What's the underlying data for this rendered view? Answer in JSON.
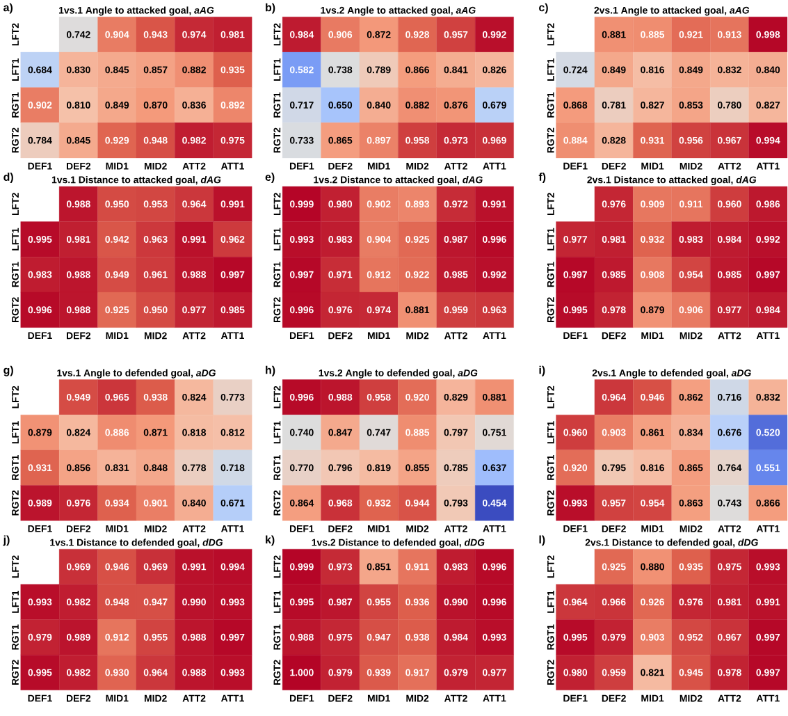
{
  "chart_data": [
    {
      "type": "heatmap",
      "title": "1vs.1 Angle to attacked goal, *aAG*",
      "annotations": [
        "a)"
      ],
      "data_labels": true,
      "categories": [
        "DEF1",
        "DEF2",
        "MID1",
        "MID2",
        "ATT2",
        "ATT1"
      ],
      "y_categories": [
        "LFT2",
        "LFT1",
        "RGT1",
        "RGT2"
      ],
      "cells": [
        [
          null,
          0.742,
          0.904,
          0.943,
          0.974,
          0.981
        ],
        [
          0.684,
          0.83,
          0.845,
          0.857,
          0.882,
          0.935
        ],
        [
          0.902,
          0.81,
          0.849,
          0.87,
          0.836,
          0.892
        ],
        [
          0.784,
          0.845,
          0.929,
          0.948,
          0.982,
          0.975
        ]
      ],
      "cell_labels": [
        [
          null,
          "0.742",
          "0.904",
          "0.943",
          "0.974",
          "0.981"
        ],
        [
          "0.684",
          "0.830",
          "0.845",
          "0.857",
          "0.882",
          "0.935"
        ],
        [
          "0.902",
          "0.810",
          "0.849",
          "0.870",
          "0.836",
          "0.892"
        ],
        [
          "0.784",
          "0.845",
          "0.929",
          "0.948",
          "0.982",
          "0.975"
        ]
      ]
    },
    {
      "type": "heatmap",
      "title": "1vs.2 Angle to attacked goal, *aAG*",
      "annotations": [
        "b)"
      ],
      "data_labels": true,
      "categories": [
        "DEF1",
        "DEF2",
        "MID1",
        "MID2",
        "ATT2",
        "ATT1"
      ],
      "y_categories": [
        "LFT2",
        "LFT1",
        "RGT1",
        "RGT2"
      ],
      "cells": [
        [
          0.984,
          0.906,
          0.872,
          0.928,
          0.957,
          0.992
        ],
        [
          0.582,
          0.738,
          0.789,
          0.866,
          0.841,
          0.826
        ],
        [
          0.717,
          0.65,
          0.84,
          0.882,
          0.876,
          0.679
        ],
        [
          0.733,
          0.865,
          0.897,
          0.958,
          0.973,
          0.969
        ]
      ],
      "cell_labels": [
        [
          "0.984",
          "0.906",
          "0.872",
          "0.928",
          "0.957",
          "0.992"
        ],
        [
          "0.582",
          "0.738",
          "0.789",
          "0.866",
          "0.841",
          "0.826"
        ],
        [
          "0.717",
          "0.650",
          "0.840",
          "0.882",
          "0.876",
          "0.679"
        ],
        [
          "0.733",
          "0.865",
          "0.897",
          "0.958",
          "0.973",
          "0.969"
        ]
      ]
    },
    {
      "type": "heatmap",
      "title": "2vs.1 Angle to attacked goal, *aAG*",
      "annotations": [
        "c)"
      ],
      "data_labels": true,
      "categories": [
        "DEF1",
        "DEF2",
        "MID1",
        "MID2",
        "ATT2",
        "ATT1"
      ],
      "y_categories": [
        "LFT2",
        "LFT1",
        "RGT1",
        "RGT2"
      ],
      "cells": [
        [
          null,
          0.881,
          0.885,
          0.921,
          0.913,
          0.998
        ],
        [
          0.724,
          0.849,
          0.816,
          0.849,
          0.832,
          0.84
        ],
        [
          0.868,
          0.781,
          0.827,
          0.853,
          0.78,
          0.827
        ],
        [
          0.884,
          0.828,
          0.931,
          0.956,
          0.967,
          0.994
        ]
      ],
      "cell_labels": [
        [
          null,
          "0.881",
          "0.885",
          "0.921",
          "0.913",
          "0.998"
        ],
        [
          "0.724",
          "0.849",
          "0.816",
          "0.849",
          "0.832",
          "0.840"
        ],
        [
          "0.868",
          "0.781",
          "0.827",
          "0.853",
          "0.780",
          "0.827"
        ],
        [
          "0.884",
          "0.828",
          "0.931",
          "0.956",
          "0.967",
          "0.994"
        ]
      ]
    },
    {
      "type": "heatmap",
      "title": "1vs.1 Distance to attacked goal, *dAG*",
      "annotations": [
        "d)"
      ],
      "data_labels": true,
      "categories": [
        "DEF1",
        "DEF2",
        "MID1",
        "MID2",
        "ATT2",
        "ATT1"
      ],
      "y_categories": [
        "LFT2",
        "LFT1",
        "RGT1",
        "RGT2"
      ],
      "cells": [
        [
          null,
          0.988,
          0.95,
          0.953,
          0.964,
          0.991
        ],
        [
          0.995,
          0.981,
          0.942,
          0.963,
          0.991,
          0.962
        ],
        [
          0.983,
          0.988,
          0.949,
          0.961,
          0.988,
          0.997
        ],
        [
          0.996,
          0.988,
          0.925,
          0.95,
          0.977,
          0.985
        ]
      ],
      "cell_labels": [
        [
          null,
          "0.988",
          "0.950",
          "0.953",
          "0.964",
          "0.991"
        ],
        [
          "0.995",
          "0.981",
          "0.942",
          "0.963",
          "0.991",
          "0.962"
        ],
        [
          "0.983",
          "0.988",
          "0.949",
          "0.961",
          "0.988",
          "0.997"
        ],
        [
          "0.996",
          "0.988",
          "0.925",
          "0.950",
          "0.977",
          "0.985"
        ]
      ]
    },
    {
      "type": "heatmap",
      "title": "1vs.2 Distance to attacked goal, *dAG*",
      "annotations": [
        "e)"
      ],
      "data_labels": true,
      "categories": [
        "DEF1",
        "DEF2",
        "MID1",
        "MID2",
        "ATT2",
        "ATT1"
      ],
      "y_categories": [
        "LFT2",
        "LFT1",
        "RGT1",
        "RGT2"
      ],
      "cells": [
        [
          0.999,
          0.98,
          0.902,
          0.893,
          0.972,
          0.991
        ],
        [
          0.993,
          0.983,
          0.904,
          0.925,
          0.987,
          0.996
        ],
        [
          0.997,
          0.971,
          0.912,
          0.922,
          0.985,
          0.992
        ],
        [
          0.996,
          0.976,
          0.974,
          0.881,
          0.959,
          0.963
        ]
      ],
      "cell_labels": [
        [
          "0.999",
          "0.980",
          "0.902",
          "0.893",
          "0.972",
          "0.991"
        ],
        [
          "0.993",
          "0.983",
          "0.904",
          "0.925",
          "0.987",
          "0.996"
        ],
        [
          "0.997",
          "0.971",
          "0.912",
          "0.922",
          "0.985",
          "0.992"
        ],
        [
          "0.996",
          "0.976",
          "0.974",
          "0.881",
          "0.959",
          "0.963"
        ]
      ]
    },
    {
      "type": "heatmap",
      "title": "2vs.1 Distance to attacked goal, *dAG*",
      "annotations": [
        "f)"
      ],
      "data_labels": true,
      "categories": [
        "DEF1",
        "DEF2",
        "MID1",
        "MID2",
        "ATT2",
        "ATT1"
      ],
      "y_categories": [
        "LFT2",
        "LFT1",
        "RGT1",
        "RGT2"
      ],
      "cells": [
        [
          null,
          0.976,
          0.909,
          0.911,
          0.96,
          0.986
        ],
        [
          0.977,
          0.981,
          0.932,
          0.983,
          0.984,
          0.992
        ],
        [
          0.997,
          0.985,
          0.908,
          0.954,
          0.985,
          0.997
        ],
        [
          0.995,
          0.978,
          0.879,
          0.906,
          0.977,
          0.984
        ]
      ],
      "cell_labels": [
        [
          null,
          "0.976",
          "0.909",
          "0.911",
          "0.960",
          "0.986"
        ],
        [
          "0.977",
          "0.981",
          "0.932",
          "0.983",
          "0.984",
          "0.992"
        ],
        [
          "0.997",
          "0.985",
          "0.908",
          "0.954",
          "0.985",
          "0.997"
        ],
        [
          "0.995",
          "0.978",
          "0.879",
          "0.906",
          "0.977",
          "0.984"
        ]
      ]
    },
    {
      "type": "heatmap",
      "title": "1vs.1 Angle to defended goal, *aDG*",
      "annotations": [
        "g)"
      ],
      "data_labels": true,
      "categories": [
        "DEF1",
        "DEF2",
        "MID1",
        "MID2",
        "ATT2",
        "ATT1"
      ],
      "y_categories": [
        "LFT2",
        "LFT1",
        "RGT1",
        "RGT2"
      ],
      "cells": [
        [
          null,
          0.949,
          0.965,
          0.938,
          0.824,
          0.773
        ],
        [
          0.879,
          0.824,
          0.886,
          0.871,
          0.818,
          0.812
        ],
        [
          0.931,
          0.856,
          0.831,
          0.848,
          0.778,
          0.718
        ],
        [
          0.989,
          0.976,
          0.934,
          0.901,
          0.84,
          0.671
        ]
      ],
      "cell_labels": [
        [
          null,
          "0.949",
          "0.965",
          "0.938",
          "0.824",
          "0.773"
        ],
        [
          "0.879",
          "0.824",
          "0.886",
          "0.871",
          "0.818",
          "0.812"
        ],
        [
          "0.931",
          "0.856",
          "0.831",
          "0.848",
          "0.778",
          "0.718"
        ],
        [
          "0.989",
          "0.976",
          "0.934",
          "0.901",
          "0.840",
          "0.671"
        ]
      ]
    },
    {
      "type": "heatmap",
      "title": "1vs.2 Angle to defended goal, *aDG*",
      "annotations": [
        "h)"
      ],
      "data_labels": true,
      "categories": [
        "DEF1",
        "DEF2",
        "MID1",
        "MID2",
        "ATT2",
        "ATT1"
      ],
      "y_categories": [
        "LFT2",
        "LFT1",
        "RGT1",
        "RGT2"
      ],
      "cells": [
        [
          0.996,
          0.988,
          0.958,
          0.92,
          0.829,
          0.881
        ],
        [
          0.74,
          0.847,
          0.747,
          0.885,
          0.797,
          0.751
        ],
        [
          0.77,
          0.796,
          0.819,
          0.855,
          0.785,
          0.637
        ],
        [
          0.864,
          0.968,
          0.932,
          0.944,
          0.793,
          0.454
        ]
      ],
      "cell_labels": [
        [
          "0.996",
          "0.988",
          "0.958",
          "0.920",
          "0.829",
          "0.881"
        ],
        [
          "0.740",
          "0.847",
          "0.747",
          "0.885",
          "0.797",
          "0.751"
        ],
        [
          "0.770",
          "0.796",
          "0.819",
          "0.855",
          "0.785",
          "0.637"
        ],
        [
          "0.864",
          "0.968",
          "0.932",
          "0.944",
          "0.793",
          "0.454"
        ]
      ]
    },
    {
      "type": "heatmap",
      "title": "2vs.1 Angle to defended goal, *aDG*",
      "annotations": [
        "i)"
      ],
      "data_labels": true,
      "categories": [
        "DEF1",
        "DEF2",
        "MID1",
        "MID2",
        "ATT2",
        "ATT1"
      ],
      "y_categories": [
        "LFT2",
        "LFT1",
        "RGT1",
        "RGT2"
      ],
      "cells": [
        [
          null,
          0.964,
          0.946,
          0.862,
          0.716,
          0.832
        ],
        [
          0.96,
          0.903,
          0.861,
          0.834,
          0.676,
          0.52
        ],
        [
          0.92,
          0.795,
          0.816,
          0.865,
          0.764,
          0.551
        ],
        [
          0.993,
          0.957,
          0.954,
          0.863,
          0.743,
          0.866
        ]
      ],
      "cell_labels": [
        [
          null,
          "0.964",
          "0.946",
          "0.862",
          "0.716",
          "0.832"
        ],
        [
          "0.960",
          "0.903",
          "0.861",
          "0.834",
          "0.676",
          "0.520"
        ],
        [
          "0.920",
          "0.795",
          "0.816",
          "0.865",
          "0.764",
          "0.551"
        ],
        [
          "0.993",
          "0.957",
          "0.954",
          "0.863",
          "0.743",
          "0.866"
        ]
      ]
    },
    {
      "type": "heatmap",
      "title": "1vs.1 Distance to defended goal, *dDG*",
      "annotations": [
        "j)"
      ],
      "data_labels": true,
      "categories": [
        "DEF1",
        "DEF2",
        "MID1",
        "MID2",
        "ATT2",
        "ATT1"
      ],
      "y_categories": [
        "LFT2",
        "LFT1",
        "RGT1",
        "RGT2"
      ],
      "cells": [
        [
          null,
          0.969,
          0.946,
          0.969,
          0.991,
          0.994
        ],
        [
          0.993,
          0.982,
          0.948,
          0.947,
          0.99,
          0.993
        ],
        [
          0.979,
          0.989,
          0.912,
          0.955,
          0.988,
          0.997
        ],
        [
          0.995,
          0.982,
          0.93,
          0.964,
          0.988,
          0.993
        ]
      ],
      "cell_labels": [
        [
          null,
          "0.969",
          "0.946",
          "0.969",
          "0.991",
          "0.994"
        ],
        [
          "0.993",
          "0.982",
          "0.948",
          "0.947",
          "0.990",
          "0.993"
        ],
        [
          "0.979",
          "0.989",
          "0.912",
          "0.955",
          "0.988",
          "0.997"
        ],
        [
          "0.995",
          "0.982",
          "0.930",
          "0.964",
          "0.988",
          "0.993"
        ]
      ]
    },
    {
      "type": "heatmap",
      "title": "1vs.2 Distance to defended goal, *dDG*",
      "annotations": [
        "k)"
      ],
      "data_labels": true,
      "categories": [
        "DEF1",
        "DEF2",
        "MID1",
        "MID2",
        "ATT2",
        "ATT1"
      ],
      "y_categories": [
        "LFT2",
        "LFT1",
        "RGT1",
        "RGT2"
      ],
      "cells": [
        [
          0.999,
          0.973,
          0.851,
          0.911,
          0.983,
          0.996
        ],
        [
          0.995,
          0.987,
          0.955,
          0.936,
          0.99,
          0.996
        ],
        [
          0.988,
          0.975,
          0.947,
          0.938,
          0.984,
          0.993
        ],
        [
          1.0,
          0.979,
          0.939,
          0.917,
          0.979,
          0.977
        ]
      ],
      "cell_labels": [
        [
          "0.999",
          "0.973",
          "0.851",
          "0.911",
          "0.983",
          "0.996"
        ],
        [
          "0.995",
          "0.987",
          "0.955",
          "0.936",
          "0.990",
          "0.996"
        ],
        [
          "0.988",
          "0.975",
          "0.947",
          "0.938",
          "0.984",
          "0.993"
        ],
        [
          "1.000",
          "0.979",
          "0.939",
          "0.917",
          "0.979",
          "0.977"
        ]
      ]
    },
    {
      "type": "heatmap",
      "title": "2vs.1 Distance to defended goal, *dDG*",
      "annotations": [
        "l)"
      ],
      "data_labels": true,
      "categories": [
        "DEF1",
        "DEF2",
        "MID1",
        "MID2",
        "ATT2",
        "ATT1"
      ],
      "y_categories": [
        "LFT2",
        "LFT1",
        "RGT1",
        "RGT2"
      ],
      "cells": [
        [
          null,
          0.925,
          0.88,
          0.935,
          0.975,
          0.993
        ],
        [
          0.964,
          0.966,
          0.926,
          0.976,
          0.981,
          0.991
        ],
        [
          0.995,
          0.979,
          0.903,
          0.952,
          0.967,
          0.997
        ],
        [
          0.98,
          0.959,
          0.821,
          0.945,
          0.978,
          0.997
        ]
      ],
      "cell_labels": [
        [
          null,
          "0.925",
          "0.880",
          "0.935",
          "0.975",
          "0.993"
        ],
        [
          "0.964",
          "0.966",
          "0.926",
          "0.976",
          "0.981",
          "0.991"
        ],
        [
          "0.995",
          "0.979",
          "0.903",
          "0.952",
          "0.967",
          "0.997"
        ],
        [
          "0.980",
          "0.959",
          "0.821",
          "0.945",
          "0.978",
          "0.997"
        ]
      ]
    }
  ]
}
